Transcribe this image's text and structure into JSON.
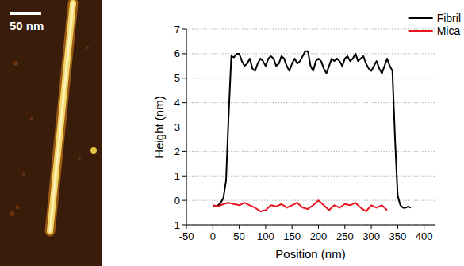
{
  "image": {
    "scale_bar_label": "50 nm"
  },
  "chart_data": {
    "type": "line",
    "x_label": "Position (nm)",
    "y_label": "Height (nm)",
    "xlim": [
      -50,
      420
    ],
    "ylim": [
      -1,
      7
    ],
    "xticks": [
      -50,
      0,
      50,
      100,
      150,
      200,
      250,
      300,
      350,
      400
    ],
    "yticks": [
      -1,
      0,
      1,
      2,
      3,
      4,
      5,
      6,
      7
    ],
    "grid": "y",
    "legend": "top-right",
    "series": [
      {
        "name": "Fibril",
        "color": "#000000",
        "x": [
          0,
          5,
          10,
          15,
          20,
          25,
          30,
          35,
          40,
          45,
          50,
          55,
          60,
          65,
          70,
          75,
          80,
          85,
          90,
          95,
          100,
          105,
          110,
          115,
          120,
          125,
          130,
          135,
          140,
          145,
          150,
          155,
          160,
          165,
          170,
          175,
          180,
          185,
          190,
          195,
          200,
          205,
          210,
          215,
          220,
          225,
          230,
          235,
          240,
          245,
          250,
          255,
          260,
          265,
          270,
          275,
          280,
          285,
          290,
          295,
          300,
          305,
          310,
          315,
          320,
          325,
          330,
          335,
          340,
          345,
          350,
          355,
          360,
          365,
          370,
          375
        ],
        "values": [
          -0.25,
          -0.25,
          -0.2,
          -0.1,
          0.1,
          0.8,
          3.5,
          5.9,
          5.85,
          6.0,
          6.0,
          5.7,
          5.5,
          5.6,
          5.8,
          5.4,
          5.3,
          5.6,
          5.8,
          5.7,
          5.5,
          5.8,
          5.9,
          5.8,
          5.5,
          5.6,
          5.9,
          5.8,
          5.5,
          5.3,
          5.6,
          5.8,
          5.6,
          5.7,
          5.9,
          6.1,
          6.1,
          5.5,
          5.3,
          5.7,
          5.8,
          5.7,
          5.4,
          5.2,
          5.5,
          5.8,
          5.7,
          5.8,
          5.7,
          5.5,
          5.8,
          5.9,
          5.7,
          5.8,
          6.0,
          5.7,
          5.8,
          5.9,
          5.6,
          5.4,
          5.3,
          5.5,
          5.7,
          5.4,
          5.2,
          5.5,
          5.8,
          5.5,
          5.3,
          2.5,
          0.2,
          -0.2,
          -0.3,
          -0.3,
          -0.25,
          -0.3
        ]
      },
      {
        "name": "Mica",
        "color": "#e8141e",
        "x": [
          0,
          10,
          20,
          30,
          40,
          50,
          60,
          70,
          80,
          90,
          100,
          110,
          120,
          130,
          140,
          150,
          160,
          170,
          180,
          190,
          200,
          210,
          220,
          230,
          240,
          250,
          260,
          270,
          280,
          290,
          300,
          310,
          320,
          330
        ],
        "values": [
          -0.2,
          -0.25,
          -0.15,
          -0.1,
          -0.15,
          -0.2,
          -0.1,
          -0.2,
          -0.3,
          -0.45,
          -0.4,
          -0.2,
          -0.25,
          -0.15,
          -0.3,
          -0.2,
          -0.1,
          -0.3,
          -0.35,
          -0.2,
          0.0,
          -0.2,
          -0.4,
          -0.2,
          -0.3,
          -0.15,
          -0.2,
          -0.1,
          -0.3,
          -0.45,
          -0.2,
          -0.3,
          -0.2,
          -0.4
        ]
      }
    ]
  }
}
